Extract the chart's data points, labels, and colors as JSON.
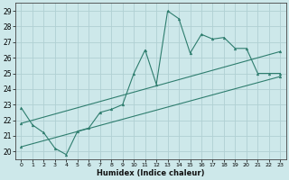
{
  "xlabel": "Humidex (Indice chaleur)",
  "xlim": [
    -0.5,
    23.5
  ],
  "ylim": [
    19.5,
    29.5
  ],
  "yticks": [
    20,
    21,
    22,
    23,
    24,
    25,
    26,
    27,
    28,
    29
  ],
  "xticks": [
    0,
    1,
    2,
    3,
    4,
    5,
    6,
    7,
    8,
    9,
    10,
    11,
    12,
    13,
    14,
    15,
    16,
    17,
    18,
    19,
    20,
    21,
    22,
    23
  ],
  "bg_color": "#cde8ea",
  "grid_color": "#b0d0d3",
  "line_color": "#2e7d6e",
  "line1_x": [
    0,
    1,
    2,
    3,
    4,
    5,
    6,
    7,
    8,
    9,
    10,
    11,
    12,
    13,
    14,
    15,
    16,
    17,
    18,
    19,
    20,
    21,
    22,
    23
  ],
  "line1_y": [
    22.8,
    21.7,
    21.2,
    20.2,
    19.8,
    21.3,
    21.5,
    22.5,
    22.7,
    23.0,
    25.0,
    26.5,
    24.3,
    29.0,
    28.5,
    26.3,
    27.5,
    27.2,
    27.3,
    26.6,
    26.6,
    25.0,
    25.0,
    25.0
  ],
  "line2_x": [
    0,
    23
  ],
  "line2_y": [
    21.8,
    26.4
  ],
  "line3_x": [
    0,
    23
  ],
  "line3_y": [
    20.3,
    24.8
  ]
}
